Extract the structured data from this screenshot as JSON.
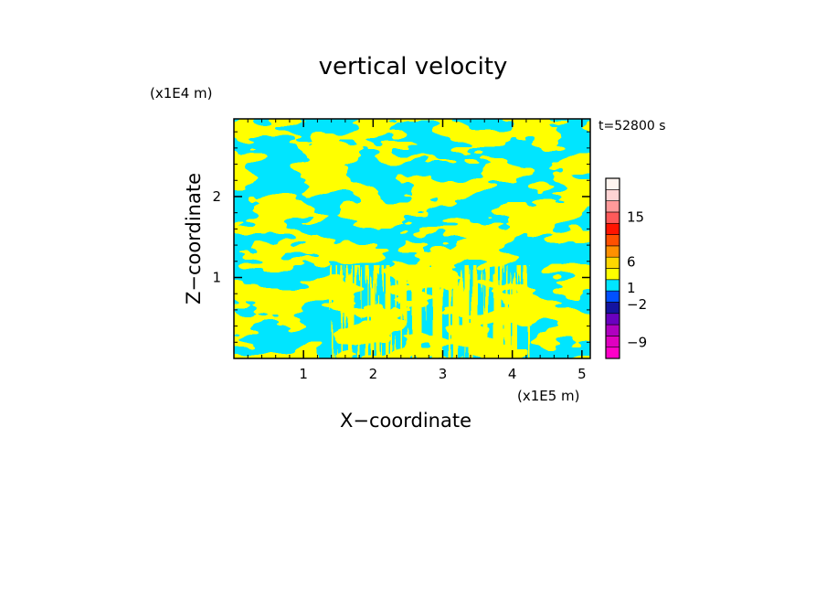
{
  "chart_data": {
    "type": "heatmap",
    "title": "vertical velocity",
    "xlabel": "X−coordinate",
    "ylabel": "Z−coordinate",
    "x_scale_label": "(x1E5 m)",
    "y_scale_label": "(x1E4 m)",
    "time_label": "t=52800 s",
    "x_ticks": [
      1,
      2,
      3,
      4,
      5
    ],
    "y_ticks": [
      1,
      2
    ],
    "xlim": [
      0,
      5.12
    ],
    "ylim": [
      0,
      2.96
    ],
    "field_colors": {
      "positive": "#ffff00",
      "negative": "#00e5ff"
    },
    "colorbar": {
      "tick_labels": [
        "15",
        "6",
        "1",
        "−2",
        "−9"
      ],
      "tick_values": [
        15,
        6,
        1,
        -2,
        -9
      ],
      "bands": [
        {
          "color": "#ff00c8"
        },
        {
          "color": "#e000c0"
        },
        {
          "color": "#b000c0"
        },
        {
          "color": "#6a00c0"
        },
        {
          "color": "#1414a0"
        },
        {
          "color": "#0050ff"
        },
        {
          "color": "#00e5ff"
        },
        {
          "color": "#ffff00"
        },
        {
          "color": "#ffd700"
        },
        {
          "color": "#ff9000"
        },
        {
          "color": "#ff5000"
        },
        {
          "color": "#ff1400"
        },
        {
          "color": "#ff5a5a"
        },
        {
          "color": "#ff9a9a"
        },
        {
          "color": "#ffd4d4"
        },
        {
          "color": "#fff5f0"
        }
      ]
    }
  }
}
